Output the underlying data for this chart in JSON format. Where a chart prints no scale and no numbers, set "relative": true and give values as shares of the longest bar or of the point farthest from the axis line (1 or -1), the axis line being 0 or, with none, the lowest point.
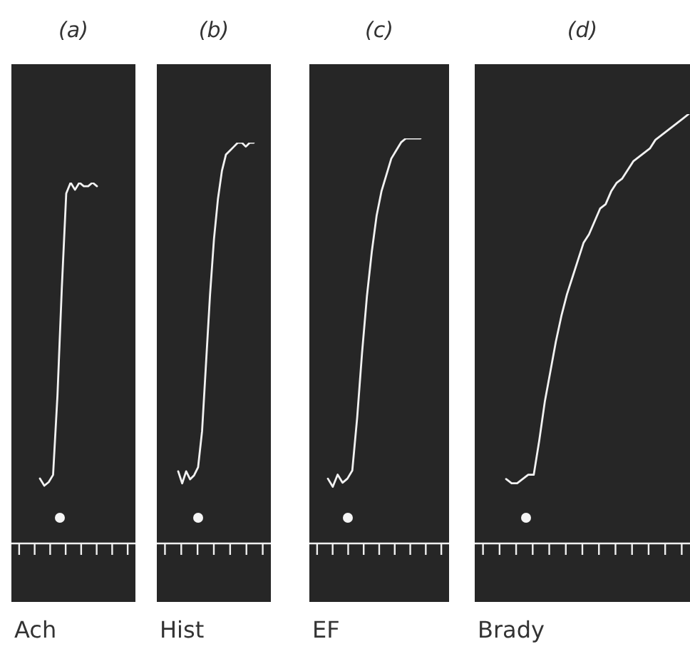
{
  "chart_data": [
    {
      "type": "line",
      "title": "(a)",
      "xlabel": "Ach",
      "relative": true,
      "color": "#f2f2f2",
      "categories": [
        null,
        null,
        null,
        null,
        null,
        null,
        null,
        null,
        null,
        null,
        null,
        null,
        null,
        null
      ],
      "values": [
        0.18,
        0.16,
        0.17,
        0.19,
        0.41,
        0.71,
        0.97,
        1.0,
        0.98,
        1.0,
        0.99,
        0.99,
        1.0,
        0.99
      ]
    },
    {
      "type": "line",
      "title": "(b)",
      "xlabel": "Hist",
      "relative": true,
      "color": "#f2f2f2",
      "categories": [
        null,
        null,
        null,
        null,
        null,
        null,
        null,
        null,
        null,
        null,
        null,
        null,
        null,
        null,
        null,
        null,
        null,
        null,
        null,
        null
      ],
      "values": [
        0.18,
        0.15,
        0.18,
        0.16,
        0.17,
        0.19,
        0.28,
        0.45,
        0.62,
        0.76,
        0.86,
        0.93,
        0.97,
        0.98,
        0.99,
        1.0,
        1.0,
        0.99,
        1.0,
        1.0
      ]
    },
    {
      "type": "line",
      "title": "(c)",
      "xlabel": "EF",
      "relative": true,
      "color": "#f2f2f2",
      "categories": [
        null,
        null,
        null,
        null,
        null,
        null,
        null,
        null,
        null,
        null,
        null,
        null,
        null,
        null,
        null,
        null,
        null,
        null,
        null,
        null
      ],
      "values": [
        0.16,
        0.14,
        0.17,
        0.15,
        0.16,
        0.18,
        0.31,
        0.47,
        0.61,
        0.72,
        0.81,
        0.87,
        0.91,
        0.95,
        0.97,
        0.99,
        1.0,
        1.0,
        1.0,
        1.0
      ]
    },
    {
      "type": "line",
      "title": "(d)",
      "xlabel": "Brady",
      "relative": true,
      "color": "#f2f2f2",
      "categories": [
        null,
        null,
        null,
        null,
        null,
        null,
        null,
        null,
        null,
        null,
        null,
        null,
        null,
        null,
        null,
        null,
        null,
        null,
        null,
        null,
        null,
        null,
        null,
        null,
        null,
        null,
        null,
        null,
        null,
        null,
        null,
        null,
        null,
        null
      ],
      "values": [
        0.15,
        0.14,
        0.14,
        0.15,
        0.16,
        0.16,
        0.24,
        0.33,
        0.4,
        0.47,
        0.53,
        0.58,
        0.62,
        0.66,
        0.7,
        0.72,
        0.75,
        0.78,
        0.79,
        0.82,
        0.84,
        0.85,
        0.87,
        0.89,
        0.9,
        0.91,
        0.92,
        0.94,
        0.95,
        0.96,
        0.97,
        0.98,
        0.99,
        1.0
      ]
    }
  ]
}
